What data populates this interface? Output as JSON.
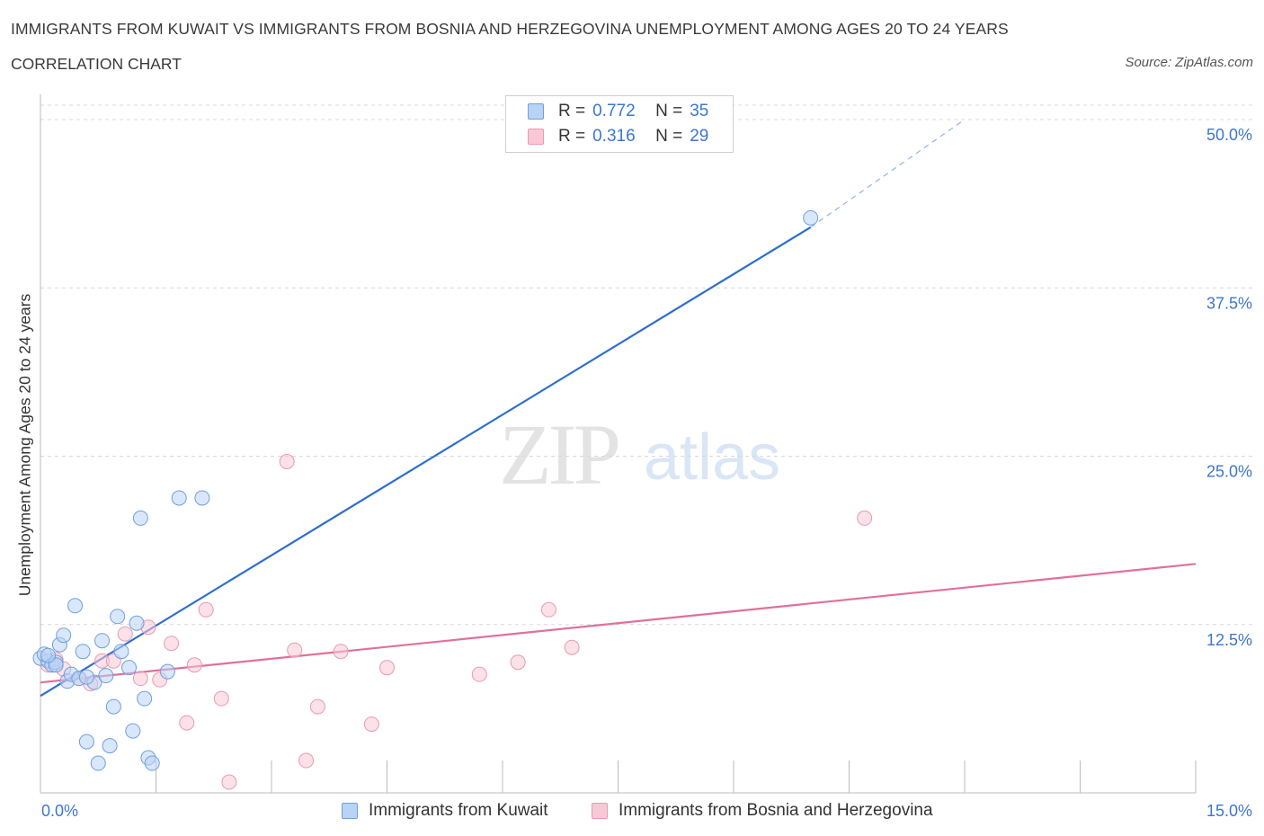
{
  "title": "IMMIGRANTS FROM KUWAIT VS IMMIGRANTS FROM BOSNIA AND HERZEGOVINA UNEMPLOYMENT AMONG AGES 20 TO 24 YEARS",
  "subtitle": "CORRELATION CHART",
  "source": "Source: ZipAtlas.com",
  "watermark": {
    "zip": "ZIP",
    "atlas": "atlas"
  },
  "legend": {
    "r_label": "R =",
    "n_label": "N =",
    "series1": {
      "r": "0.772",
      "n": "35"
    },
    "series2": {
      "r": "0.316",
      "n": "29"
    }
  },
  "colors": {
    "kuwait_fill": "#b9d3f5",
    "kuwait_line": "#2e6fcc",
    "bosnia_fill": "#f8c8d6",
    "bosnia_line": "#e0709a",
    "axis_label": "#3b76d0",
    "grid": "#d8d8d8"
  },
  "chart_data": {
    "type": "scatter",
    "xlabel": "",
    "ylabel": "Unemployment Among Ages 20 to 24 years",
    "xlim": [
      0,
      15
    ],
    "ylim": [
      0,
      50
    ],
    "x_tick_labels": [
      "0.0%",
      "15.0%"
    ],
    "y_tick_labels": [
      "12.5%",
      "25.0%",
      "37.5%",
      "50.0%"
    ],
    "y_ticks": [
      12.5,
      25,
      37.5,
      50
    ],
    "grid": true,
    "legend_position": "top-center",
    "series": [
      {
        "name": "Immigrants from Kuwait",
        "points": [
          [
            0.0,
            10.0
          ],
          [
            0.1,
            9.8
          ],
          [
            0.15,
            9.5
          ],
          [
            0.2,
            9.7
          ],
          [
            0.25,
            11.0
          ],
          [
            0.3,
            11.7
          ],
          [
            0.35,
            8.3
          ],
          [
            0.4,
            8.8
          ],
          [
            0.45,
            13.9
          ],
          [
            0.5,
            8.5
          ],
          [
            0.55,
            10.5
          ],
          [
            0.6,
            3.8
          ],
          [
            0.7,
            8.2
          ],
          [
            0.75,
            2.2
          ],
          [
            0.8,
            11.3
          ],
          [
            0.85,
            8.7
          ],
          [
            0.9,
            3.5
          ],
          [
            0.95,
            6.4
          ],
          [
            1.0,
            13.1
          ],
          [
            1.05,
            10.5
          ],
          [
            1.15,
            9.3
          ],
          [
            1.2,
            4.6
          ],
          [
            1.25,
            12.6
          ],
          [
            1.3,
            20.4
          ],
          [
            1.35,
            7.0
          ],
          [
            1.4,
            2.6
          ],
          [
            1.45,
            2.2
          ],
          [
            1.65,
            9.0
          ],
          [
            1.8,
            21.9
          ],
          [
            2.1,
            21.9
          ],
          [
            10.0,
            42.7
          ],
          [
            0.05,
            10.3
          ],
          [
            0.2,
            9.5
          ],
          [
            0.6,
            8.6
          ],
          [
            0.1,
            10.2
          ]
        ],
        "trend": {
          "x": [
            0.0,
            10.0
          ],
          "y": [
            7.2,
            42.0
          ],
          "dashed_to": [
            12.0,
            50.0
          ]
        }
      },
      {
        "name": "Immigrants from Bosnia and Herzegovina",
        "points": [
          [
            0.1,
            9.5
          ],
          [
            0.2,
            9.9
          ],
          [
            0.3,
            9.2
          ],
          [
            0.5,
            8.5
          ],
          [
            0.65,
            8.1
          ],
          [
            0.8,
            9.8
          ],
          [
            0.95,
            9.8
          ],
          [
            1.1,
            11.8
          ],
          [
            1.3,
            8.5
          ],
          [
            1.4,
            12.3
          ],
          [
            1.55,
            8.4
          ],
          [
            1.7,
            11.1
          ],
          [
            1.9,
            5.2
          ],
          [
            2.0,
            9.5
          ],
          [
            2.15,
            13.6
          ],
          [
            2.35,
            7.0
          ],
          [
            2.45,
            0.8
          ],
          [
            3.2,
            24.6
          ],
          [
            3.3,
            10.6
          ],
          [
            3.45,
            2.4
          ],
          [
            3.6,
            6.4
          ],
          [
            3.9,
            10.5
          ],
          [
            4.3,
            5.1
          ],
          [
            4.5,
            9.3
          ],
          [
            5.7,
            8.8
          ],
          [
            6.2,
            9.7
          ],
          [
            6.6,
            13.6
          ],
          [
            6.9,
            10.8
          ],
          [
            10.7,
            20.4
          ]
        ],
        "trend": {
          "x": [
            0.0,
            15.0
          ],
          "y": [
            8.2,
            17.0
          ]
        }
      }
    ]
  },
  "bottom_legend": {
    "item1": "Immigrants from Kuwait",
    "item2": "Immigrants from Bosnia and Herzegovina"
  }
}
